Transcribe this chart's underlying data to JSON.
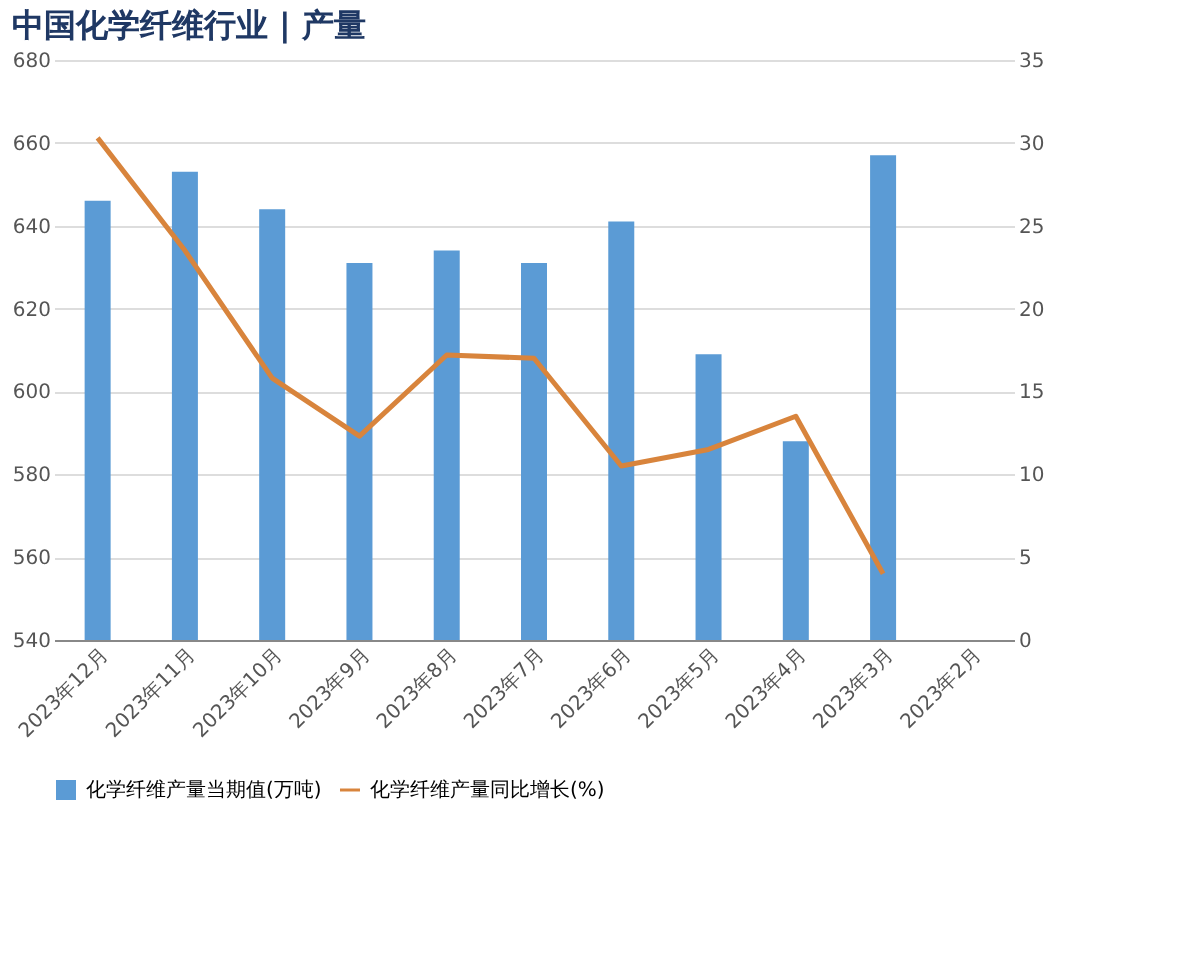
{
  "chart_data": {
    "type": "bar",
    "title": "中国化学纤维行业 | 产量",
    "categories": [
      "2023年12月",
      "2023年11月",
      "2023年10月",
      "2023年9月",
      "2023年8月",
      "2023年7月",
      "2023年6月",
      "2023年5月",
      "2023年4月",
      "2023年3月",
      "2023年2月"
    ],
    "series": [
      {
        "name": "化学纤维产量当期值(万吨)",
        "color": "#5b9bd5",
        "values": [
          646,
          653,
          644,
          631,
          634,
          631,
          641,
          609,
          588,
          657,
          null
        ]
      },
      {
        "name": "化学纤维产量同比增长(%)",
        "type": "line",
        "axis": "y2",
        "color": "#d8843c",
        "values": [
          30.3,
          23.5,
          15.8,
          12.3,
          17.2,
          17.0,
          10.5,
          11.5,
          13.5,
          4.0,
          null
        ]
      }
    ],
    "ylim": [
      540,
      680
    ],
    "yticks": [
      540,
      560,
      580,
      600,
      620,
      640,
      660,
      680
    ],
    "y2lim": [
      0,
      35
    ],
    "y2ticks": [
      0,
      5,
      10,
      15,
      20,
      25,
      30,
      35
    ],
    "grid": "y",
    "legend": "bottom",
    "line_style": "solid",
    "marker": "none"
  }
}
